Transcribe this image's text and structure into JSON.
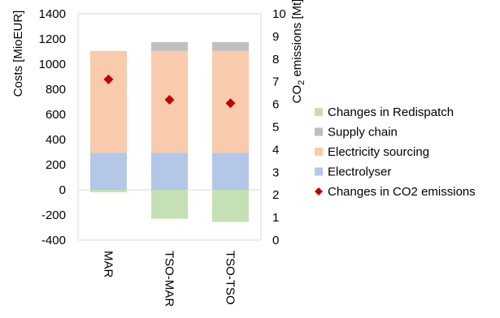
{
  "chart_data": {
    "type": "bar",
    "stacked": true,
    "categories": [
      "MAR",
      "TSO-MAR",
      "TSO-TSO"
    ],
    "series": [
      {
        "name": "Changes in Redispatch",
        "color": "#c5e0b4",
        "values": [
          -20,
          -230,
          -255
        ]
      },
      {
        "name": "Supply chain",
        "color": "#bfbfbf",
        "values": [
          0,
          70,
          70
        ]
      },
      {
        "name": "Electricity sourcing",
        "color": "#f8cbad",
        "values": [
          810,
          810,
          810
        ]
      },
      {
        "name": "Electrolyser",
        "color": "#b4c7e7",
        "values": [
          295,
          295,
          295
        ]
      }
    ],
    "stack_order": [
      "Electrolyser",
      "Electricity sourcing",
      "Supply chain"
    ],
    "secondary_series": {
      "name": "Changes in CO2 emissions",
      "type": "scatter",
      "marker": "diamond",
      "color": "#c00000",
      "axis": "right",
      "values": [
        7.1,
        6.2,
        6.05
      ]
    },
    "ylabel_left": "Costs [MioEUR]",
    "ylabel_right_prefix": "CO",
    "ylabel_right_sub": "2",
    "ylabel_right_suffix": " emissions [Mt]",
    "ylim_left": [
      -400,
      1400
    ],
    "yticks_left": [
      "1400",
      "1200",
      "1000",
      "800",
      "600",
      "400",
      "200",
      "0",
      "-200",
      "-400"
    ],
    "ylim_right": [
      0,
      10
    ],
    "yticks_right": [
      "10",
      "9",
      "8",
      "7",
      "6",
      "5",
      "4",
      "3",
      "2",
      "1",
      "0"
    ],
    "grid": false,
    "legend_position": "right",
    "legend_order": [
      "Changes in Redispatch",
      "Supply chain",
      "Electricity sourcing",
      "Electrolyser",
      "Changes in CO2 emissions"
    ]
  }
}
